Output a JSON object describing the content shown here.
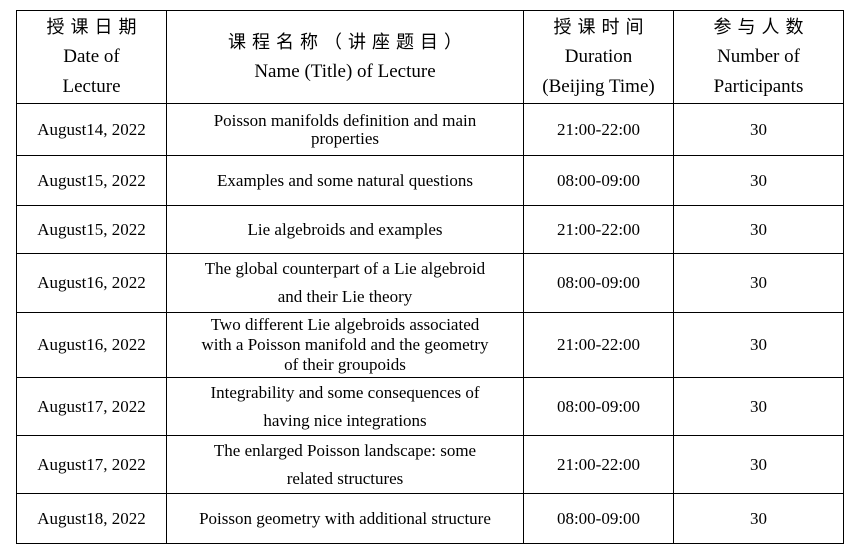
{
  "colors": {
    "background": "#ffffff",
    "border": "#000000",
    "text": "#000000"
  },
  "table": {
    "columns": [
      {
        "key": "date",
        "zh": "授课日期",
        "en": "Date of\nLecture"
      },
      {
        "key": "title",
        "zh": "课程名称（讲座题目）",
        "en": "Name (Title) of Lecture"
      },
      {
        "key": "time",
        "zh": "授课时间",
        "en": "Duration\n(Beijing Time)"
      },
      {
        "key": "participants",
        "zh": "参与人数",
        "en": "Number of\nParticipants"
      }
    ],
    "rows": [
      {
        "date": "August14, 2022",
        "title": "Poisson manifolds definition and main\nproperties",
        "time": "21:00-22:00",
        "participants": "30"
      },
      {
        "date": "August15, 2022",
        "title": "Examples and some natural questions",
        "time": "08:00-09:00",
        "participants": "30"
      },
      {
        "date": "August15, 2022",
        "title": "Lie algebroids and examples",
        "time": "21:00-22:00",
        "participants": "30"
      },
      {
        "date": "August16, 2022",
        "title": "The global counterpart of a Lie algebroid\nand their Lie theory",
        "time": "08:00-09:00",
        "participants": "30"
      },
      {
        "date": "August16, 2022",
        "title": "Two different Lie algebroids associated\nwith a Poisson manifold and the geometry\nof their groupoids",
        "time": "21:00-22:00",
        "participants": "30"
      },
      {
        "date": "August17, 2022",
        "title": "Integrability and some consequences of\nhaving nice integrations",
        "time": "08:00-09:00",
        "participants": "30"
      },
      {
        "date": "August17, 2022",
        "title": "The enlarged Poisson landscape: some\nrelated structures",
        "time": "21:00-22:00",
        "participants": "30"
      },
      {
        "date": "August18, 2022",
        "title": "Poisson geometry with additional structure",
        "time": "08:00-09:00",
        "participants": "30"
      }
    ]
  }
}
